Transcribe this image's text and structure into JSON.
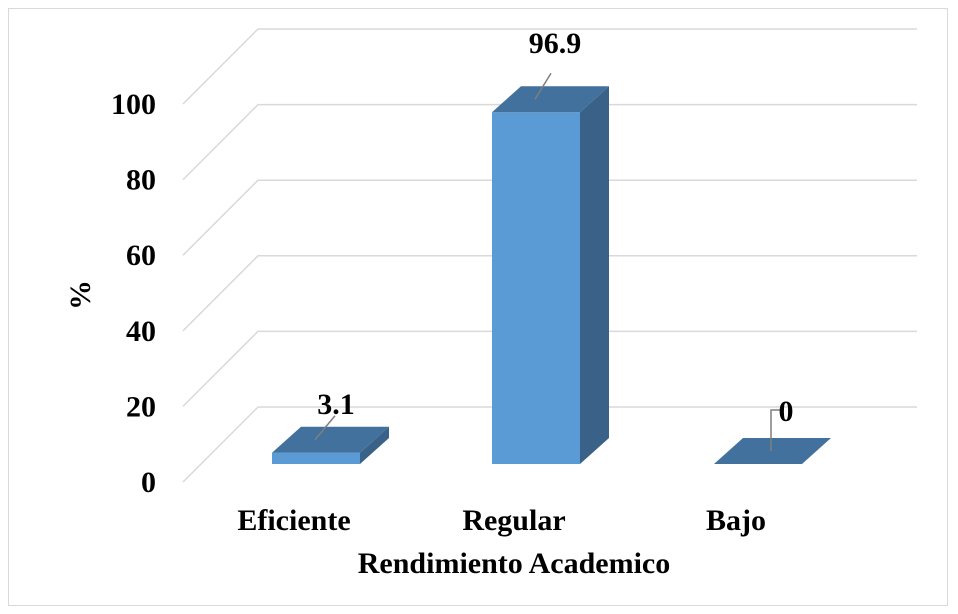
{
  "chart_data": {
    "type": "bar",
    "title": "",
    "categories": [
      "Eficiente",
      "Regular",
      "Bajo"
    ],
    "values": [
      3.1,
      96.9,
      0
    ],
    "data_labels": [
      "3.1",
      "96.9",
      "0"
    ],
    "xlabel": "Rendimiento Academico",
    "ylabel": "%",
    "ylim": [
      0,
      100
    ],
    "yticks": [
      0,
      20,
      40,
      60,
      80,
      100
    ],
    "ytick_labels": [
      "0",
      "20",
      "40",
      "60",
      "80",
      "100"
    ],
    "grid": true,
    "legend": "none",
    "style": "3d-column",
    "colors": {
      "bar_front": "#5b9bd5",
      "bar_top": "#41719c",
      "bar_side": "#3a6288",
      "gridline": "#d9d9d9",
      "text": "#000000",
      "leader": "#7f7f7f"
    }
  }
}
